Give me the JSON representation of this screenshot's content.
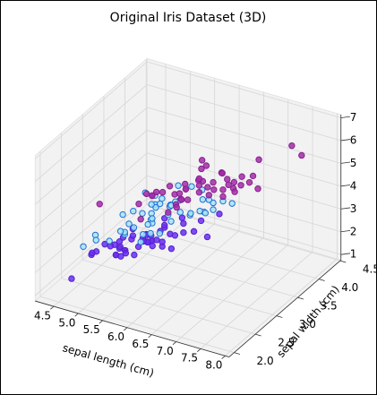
{
  "chart_data": {
    "type": "scatter3d",
    "title": "Original Iris Dataset (3D)",
    "xlabel": "sepal length (cm)",
    "ylabel": "sepal width (cm)",
    "xlim": [
      4.12,
      8.08
    ],
    "ylim": [
      1.88,
      4.52
    ],
    "zlim": [
      0.76,
      7.14
    ],
    "xticks": [
      4.5,
      {
        "value": 5,
        "label": "5.0"
      },
      5.5,
      {
        "value": 6,
        "label": "6.0"
      },
      6.5,
      {
        "value": 7,
        "label": "7.0"
      },
      7.5,
      {
        "value": 8,
        "label": "8.0"
      }
    ],
    "yticks": [
      {
        "value": 2,
        "label": "2.0"
      },
      2.5,
      {
        "value": 3,
        "label": "3.0"
      },
      3.5,
      {
        "value": 4,
        "label": "4.0"
      },
      4.5
    ],
    "zticks": [
      1,
      2,
      3,
      4,
      5,
      6,
      7
    ],
    "grid": true,
    "series": [
      {
        "color": "#6a2ff0",
        "edgecolor": "#5520d0",
        "x": [
          5.1,
          4.9,
          4.7,
          4.6,
          5.0,
          5.4,
          4.6,
          5.0,
          4.4,
          4.9,
          5.4,
          4.8,
          4.8,
          4.3,
          5.8,
          5.7,
          5.4,
          5.1,
          5.7,
          5.1,
          5.4,
          5.1,
          4.6,
          5.1,
          4.8,
          5.0,
          5.0,
          5.2,
          5.2,
          4.7,
          4.8,
          5.4,
          5.2,
          5.5,
          4.9,
          5.0,
          5.5,
          4.9,
          4.4,
          5.1,
          5.0,
          4.5,
          4.4,
          5.0,
          5.1,
          4.8,
          5.1,
          4.6,
          5.3,
          5.0
        ],
        "y": [
          3.5,
          3.0,
          3.2,
          3.1,
          3.6,
          3.9,
          3.4,
          3.4,
          2.9,
          3.1,
          3.7,
          3.4,
          3.0,
          3.0,
          4.0,
          4.4,
          3.9,
          3.5,
          3.8,
          3.8,
          3.4,
          3.7,
          3.6,
          3.3,
          3.4,
          3.0,
          3.4,
          3.5,
          3.4,
          3.2,
          3.1,
          3.4,
          4.1,
          4.2,
          3.1,
          3.2,
          3.5,
          3.6,
          3.0,
          3.4,
          3.5,
          2.3,
          3.2,
          3.5,
          3.8,
          3.0,
          3.8,
          3.2,
          3.7,
          3.3
        ],
        "z": [
          1.4,
          1.4,
          1.3,
          1.5,
          1.4,
          1.7,
          1.4,
          1.5,
          1.4,
          1.5,
          1.5,
          1.6,
          1.4,
          1.1,
          1.2,
          1.5,
          1.3,
          1.4,
          1.7,
          1.5,
          1.7,
          1.5,
          1.0,
          1.7,
          1.9,
          1.6,
          1.6,
          1.5,
          1.4,
          1.6,
          1.6,
          1.5,
          1.5,
          1.4,
          1.5,
          1.2,
          1.3,
          1.4,
          1.3,
          1.5,
          1.3,
          1.3,
          1.3,
          1.6,
          1.9,
          1.4,
          1.6,
          1.4,
          1.5,
          1.4
        ]
      },
      {
        "color": "#a8e4f8",
        "edgecolor": "#1f6fd1",
        "x": [
          7.0,
          6.4,
          6.9,
          5.5,
          6.5,
          5.7,
          6.3,
          4.9,
          6.6,
          5.2,
          5.0,
          5.9,
          6.0,
          6.1,
          5.6,
          6.7,
          5.6,
          5.8,
          6.2,
          5.6,
          5.9,
          6.1,
          6.3,
          6.1,
          6.4,
          6.6,
          6.8,
          6.7,
          6.0,
          5.7,
          5.5,
          5.5,
          5.8,
          6.0,
          5.4,
          6.0,
          6.7,
          6.3,
          5.6,
          5.5,
          5.5,
          6.1,
          5.8,
          5.0,
          5.6,
          5.7,
          5.7,
          6.2,
          5.1,
          5.7
        ],
        "y": [
          3.2,
          3.2,
          3.1,
          2.3,
          2.8,
          2.8,
          3.3,
          2.4,
          2.9,
          2.7,
          2.0,
          3.0,
          2.2,
          2.9,
          2.9,
          3.1,
          3.0,
          2.7,
          2.2,
          2.5,
          3.2,
          2.8,
          2.5,
          2.8,
          2.9,
          3.0,
          2.8,
          3.0,
          2.9,
          2.6,
          2.4,
          2.4,
          2.7,
          2.7,
          3.0,
          3.4,
          3.1,
          2.3,
          3.0,
          2.5,
          2.6,
          3.0,
          2.6,
          2.3,
          2.7,
          3.0,
          2.9,
          2.9,
          2.5,
          2.8
        ],
        "z": [
          4.7,
          4.5,
          4.9,
          4.0,
          4.6,
          4.5,
          4.7,
          3.3,
          4.6,
          3.9,
          3.5,
          4.2,
          4.0,
          4.7,
          3.6,
          4.4,
          4.5,
          4.1,
          4.5,
          3.9,
          4.8,
          4.0,
          4.9,
          4.7,
          4.3,
          4.4,
          4.8,
          5.0,
          4.5,
          3.5,
          3.8,
          3.7,
          3.9,
          5.1,
          4.5,
          4.5,
          4.7,
          4.4,
          4.1,
          4.0,
          4.4,
          4.6,
          4.0,
          3.3,
          4.2,
          4.2,
          4.2,
          4.3,
          3.0,
          4.1
        ]
      },
      {
        "color": "#a22ea8",
        "edgecolor": "#8a1f90",
        "x": [
          6.3,
          5.8,
          7.1,
          6.3,
          6.5,
          7.6,
          4.9,
          7.3,
          6.7,
          7.2,
          6.5,
          6.4,
          6.8,
          5.7,
          5.8,
          6.4,
          6.5,
          7.7,
          7.7,
          6.0,
          6.9,
          5.6,
          7.7,
          6.3,
          6.7,
          7.2,
          6.2,
          6.1,
          6.4,
          7.2,
          7.4,
          7.9,
          6.4,
          6.3,
          6.1,
          7.7,
          6.3,
          6.4,
          6.0,
          6.9,
          6.7,
          6.9,
          5.8,
          6.8,
          6.7,
          6.7,
          6.3,
          6.5,
          6.2,
          5.9
        ],
        "y": [
          3.3,
          2.7,
          3.0,
          2.9,
          3.0,
          3.0,
          2.5,
          2.9,
          2.5,
          3.6,
          3.2,
          2.7,
          3.0,
          2.5,
          2.8,
          3.2,
          3.0,
          3.8,
          2.6,
          2.2,
          3.2,
          2.8,
          2.8,
          2.7,
          3.3,
          3.2,
          2.8,
          3.0,
          2.8,
          3.0,
          2.8,
          3.8,
          2.8,
          2.8,
          2.6,
          3.0,
          3.4,
          3.1,
          3.0,
          3.1,
          3.1,
          3.1,
          2.7,
          3.2,
          3.3,
          3.0,
          2.5,
          3.0,
          3.4,
          3.0
        ],
        "z": [
          6.0,
          5.1,
          5.9,
          5.6,
          5.8,
          6.6,
          4.5,
          6.3,
          5.8,
          6.1,
          5.1,
          5.3,
          5.5,
          5.0,
          5.1,
          5.3,
          5.5,
          6.7,
          6.9,
          5.0,
          5.7,
          4.9,
          6.7,
          4.9,
          5.7,
          6.0,
          4.8,
          4.9,
          5.6,
          5.8,
          6.1,
          6.4,
          5.6,
          5.1,
          5.6,
          6.1,
          5.6,
          5.5,
          4.8,
          5.4,
          5.6,
          5.1,
          5.1,
          5.9,
          5.7,
          5.2,
          5.0,
          5.2,
          5.4,
          5.1
        ]
      }
    ]
  }
}
